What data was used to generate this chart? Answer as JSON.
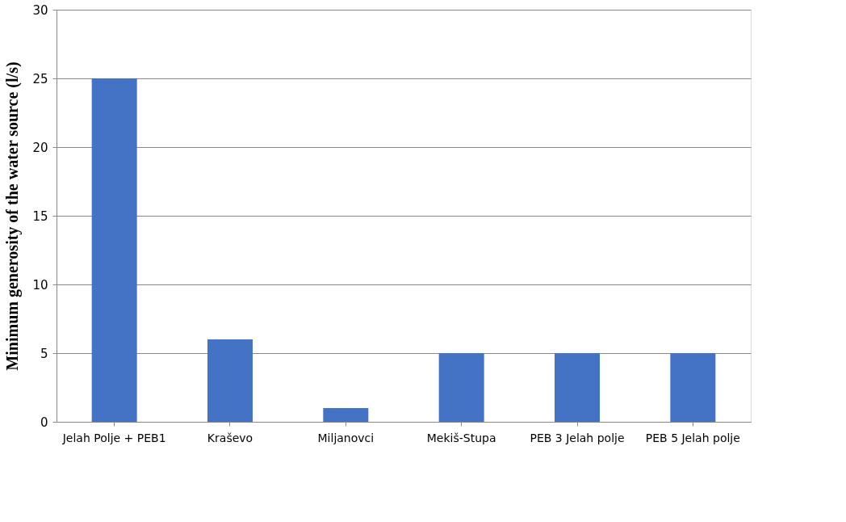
{
  "chart_data": {
    "type": "bar",
    "ylabel": "Minimum generosity of the water source  (l/s)",
    "categories": [
      "Jelah Polje + PEB1",
      "Kraševo",
      "Miljanovci",
      "Mekiš-Stupa",
      "PEB 3 Jelah polje",
      "PEB 5 Jelah polje"
    ],
    "values": [
      25,
      6,
      1,
      5,
      5,
      5
    ],
    "color": "#4472c4",
    "ylim": [
      0,
      30
    ],
    "yticks": [
      0,
      5,
      10,
      15,
      20,
      25,
      30
    ],
    "grid": "y"
  }
}
